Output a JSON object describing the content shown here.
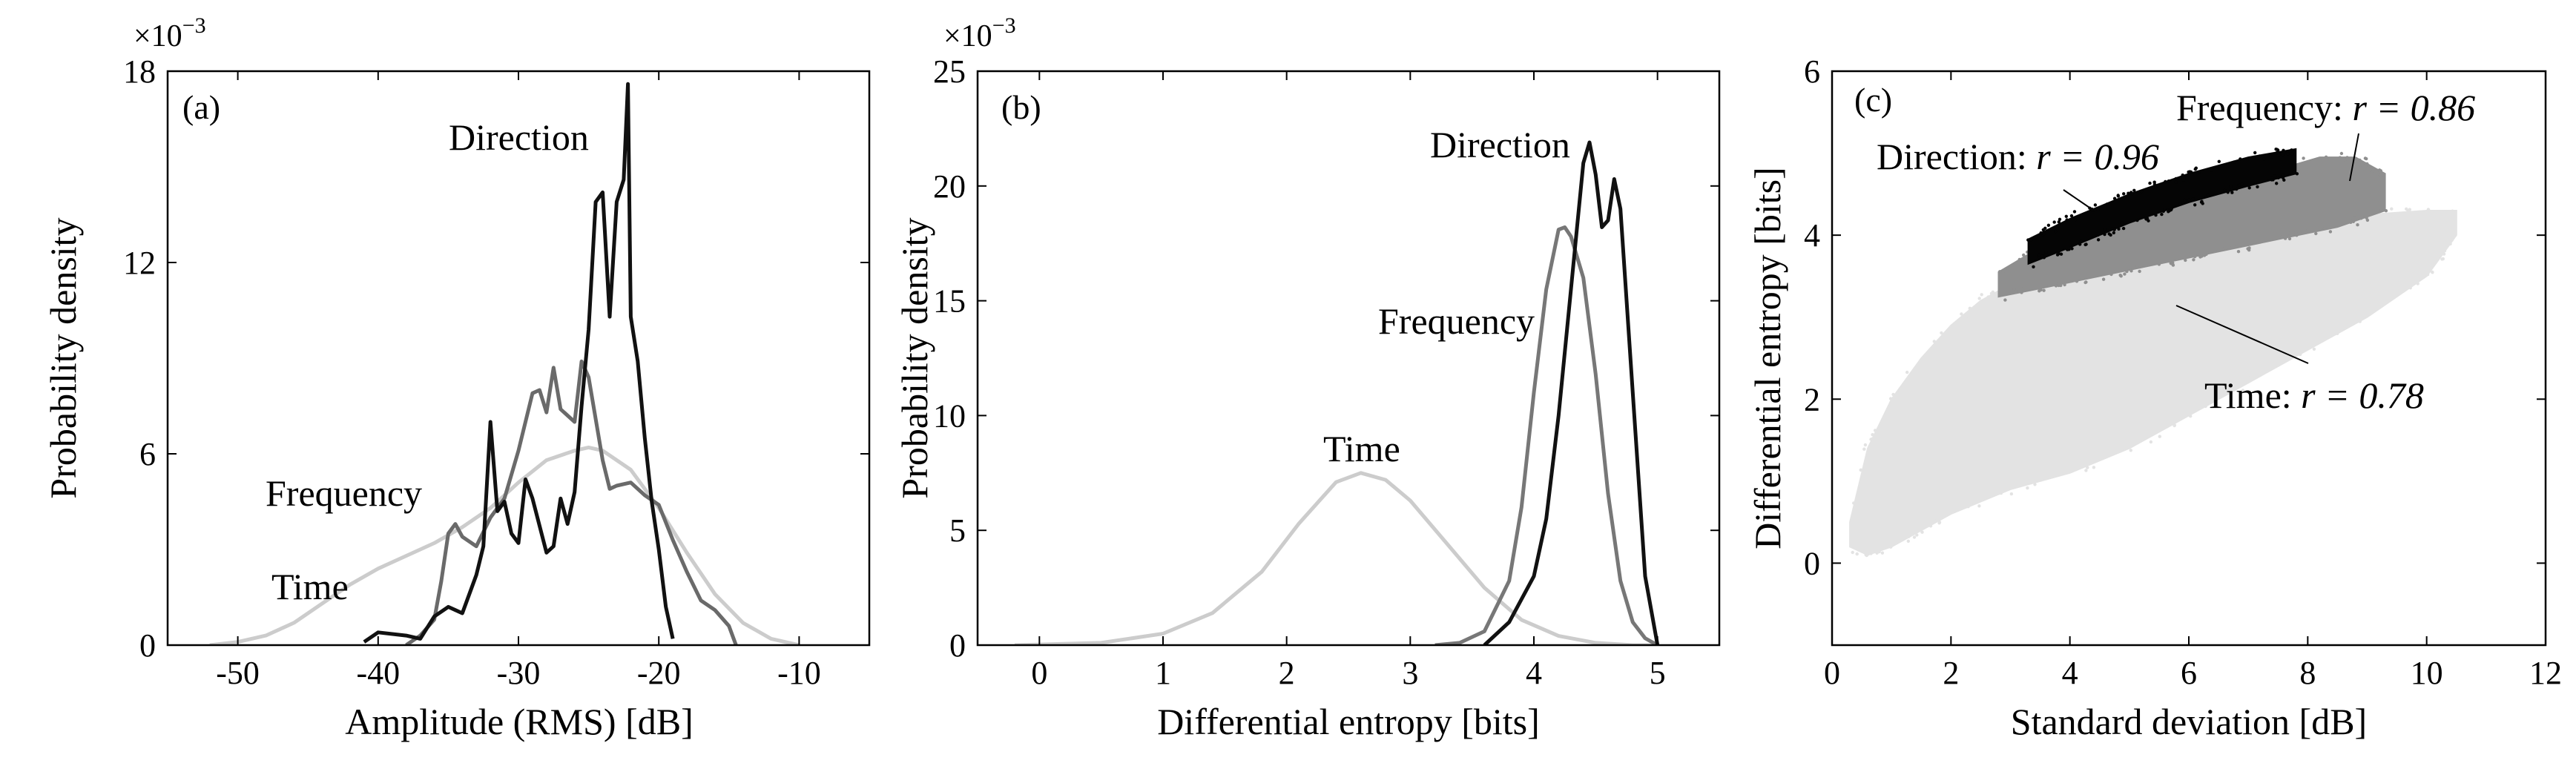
{
  "chart_data": [
    {
      "type": "line",
      "panel_label": "(a)",
      "xlabel": "Amplitude (RMS) [dB]",
      "ylabel": "Probability density",
      "xlim": [
        -55,
        -5
      ],
      "ylim": [
        0,
        0.018
      ],
      "xticks": [
        -50,
        -40,
        -30,
        -20,
        -10
      ],
      "yticks": [
        0,
        0.006,
        0.012,
        0.018
      ],
      "ytick_labels": [
        "0",
        "6",
        "12",
        "18"
      ],
      "y_multiplier": "×10",
      "y_multiplier_exp": "−3",
      "annotations": [
        "Direction",
        "Frequency",
        "Time"
      ],
      "series": [
        {
          "name": "Time",
          "color": "#cccccc",
          "x": [
            -52,
            -50,
            -48,
            -46,
            -44,
            -42,
            -40,
            -38,
            -36,
            -34,
            -32,
            -30,
            -28,
            -26,
            -25,
            -24,
            -22,
            -20,
            -18,
            -16,
            -14,
            -12,
            -10
          ],
          "y": [
            0.0,
            0.0001,
            0.0003,
            0.0007,
            0.0013,
            0.0019,
            0.0024,
            0.0028,
            0.0032,
            0.0037,
            0.0043,
            0.0051,
            0.0058,
            0.0061,
            0.0062,
            0.0061,
            0.0055,
            0.0043,
            0.0029,
            0.0016,
            0.0007,
            0.0002,
            0.0
          ]
        },
        {
          "name": "Frequency",
          "color": "#6a6a6a",
          "x": [
            -38,
            -37,
            -36,
            -35.5,
            -35,
            -34.5,
            -34,
            -33,
            -32,
            -31,
            -30,
            -29,
            -28.5,
            -28,
            -27.5,
            -27,
            -26,
            -25.5,
            -25,
            -24,
            -23.5,
            -23,
            -22,
            -21,
            -20,
            -19,
            -18,
            -17,
            -16,
            -15,
            -14.5
          ],
          "y": [
            0.0,
            0.0003,
            0.0008,
            0.002,
            0.0035,
            0.0038,
            0.0034,
            0.0031,
            0.004,
            0.0046,
            0.0061,
            0.0079,
            0.008,
            0.0073,
            0.0087,
            0.0074,
            0.007,
            0.0089,
            0.0084,
            0.0058,
            0.0049,
            0.005,
            0.0051,
            0.0047,
            0.0044,
            0.0033,
            0.0023,
            0.0014,
            0.0011,
            0.0006,
            0.0
          ]
        },
        {
          "name": "Direction",
          "color": "#111111",
          "x": [
            -41,
            -40,
            -38,
            -37,
            -36,
            -35,
            -34.5,
            -34,
            -33,
            -32.5,
            -32,
            -31.5,
            -31,
            -30.5,
            -30,
            -29.5,
            -29,
            -28,
            -27.5,
            -27,
            -26.5,
            -26,
            -25.5,
            -25,
            -24.5,
            -24,
            -23.5,
            -23,
            -22.5,
            -22.2,
            -22,
            -21.5,
            -21,
            -20.5,
            -20,
            -19.5,
            -19
          ],
          "y": [
            0.0001,
            0.0004,
            0.0003,
            0.0002,
            0.0009,
            0.0012,
            0.0011,
            0.001,
            0.0022,
            0.0031,
            0.007,
            0.0042,
            0.0045,
            0.0035,
            0.0032,
            0.0052,
            0.0046,
            0.0029,
            0.0031,
            0.0046,
            0.0038,
            0.0048,
            0.0075,
            0.0099,
            0.0139,
            0.0142,
            0.0103,
            0.0139,
            0.0146,
            0.0176,
            0.0103,
            0.0089,
            0.0065,
            0.0045,
            0.003,
            0.0012,
            0.0002
          ]
        }
      ]
    },
    {
      "type": "line",
      "panel_label": "(b)",
      "xlabel": "Differential entropy [bits]",
      "ylabel": "Probability density",
      "xlim": [
        -0.5,
        5.5
      ],
      "ylim": [
        0,
        0.025
      ],
      "xticks": [
        0,
        1,
        2,
        3,
        4,
        5
      ],
      "yticks": [
        0,
        0.005,
        0.01,
        0.015,
        0.02,
        0.025
      ],
      "ytick_labels": [
        "0",
        "5",
        "10",
        "15",
        "20",
        "25"
      ],
      "y_multiplier": "×10",
      "y_multiplier_exp": "−3",
      "annotations": [
        "Direction",
        "Frequency",
        "Time"
      ],
      "series": [
        {
          "name": "Time",
          "color": "#cccccc",
          "x": [
            -0.2,
            0.5,
            1.0,
            1.4,
            1.8,
            2.1,
            2.4,
            2.6,
            2.8,
            3.0,
            3.3,
            3.6,
            3.9,
            4.2,
            4.5,
            4.8,
            5.0
          ],
          "y": [
            0.0,
            0.0001,
            0.0005,
            0.0014,
            0.0032,
            0.0053,
            0.0071,
            0.0075,
            0.0072,
            0.0063,
            0.0044,
            0.0025,
            0.0011,
            0.0004,
            0.0001,
            0.0,
            0.0
          ]
        },
        {
          "name": "Frequency",
          "color": "#777777",
          "x": [
            3.2,
            3.4,
            3.6,
            3.8,
            3.9,
            4.0,
            4.1,
            4.2,
            4.25,
            4.3,
            4.4,
            4.5,
            4.6,
            4.7,
            4.8,
            4.9,
            5.0
          ],
          "y": [
            0.0,
            0.0001,
            0.0006,
            0.0028,
            0.006,
            0.011,
            0.0155,
            0.0181,
            0.0182,
            0.0178,
            0.016,
            0.0118,
            0.0066,
            0.0028,
            0.001,
            0.0003,
            0.0
          ]
        },
        {
          "name": "Direction",
          "color": "#111111",
          "x": [
            3.6,
            3.8,
            4.0,
            4.1,
            4.2,
            4.3,
            4.4,
            4.45,
            4.5,
            4.55,
            4.6,
            4.65,
            4.7,
            4.8,
            4.9,
            5.0
          ],
          "y": [
            0.0,
            0.001,
            0.003,
            0.0055,
            0.01,
            0.0155,
            0.021,
            0.0219,
            0.0205,
            0.0182,
            0.0185,
            0.0203,
            0.019,
            0.011,
            0.003,
            0.0
          ]
        }
      ]
    },
    {
      "type": "scatter",
      "panel_label": "(c)",
      "xlabel": "Standard deviation [dB]",
      "ylabel": "Differential entropy [bits]",
      "xlim": [
        0,
        12
      ],
      "ylim": [
        -1,
        6
      ],
      "xticks": [
        0,
        2,
        4,
        6,
        8,
        10,
        12
      ],
      "yticks": [
        0,
        2,
        4,
        6
      ],
      "annotations": [
        {
          "series": "Direction",
          "label": "Direction: ",
          "r_text": "r = 0.96"
        },
        {
          "series": "Frequency",
          "label": "Frequency: ",
          "r_text": "r = 0.86"
        },
        {
          "series": "Time",
          "label": "Time: ",
          "r_text": "r = 0.78"
        }
      ],
      "series": [
        {
          "name": "Time",
          "color": "#e3e3e3",
          "region_upper": {
            "x": [
              0.3,
              0.6,
              1.0,
              1.5,
              2.0,
              2.5,
              3.0,
              3.5,
              4.0,
              5.0,
              6.0,
              7.0,
              8.0,
              9.0,
              10.0,
              10.5
            ],
            "y": [
              0.5,
              1.4,
              2.0,
              2.5,
              2.9,
              3.2,
              3.4,
              3.55,
              3.7,
              3.85,
              3.95,
              4.05,
              4.15,
              4.25,
              4.3,
              4.3
            ]
          },
          "region_lower": {
            "x": [
              0.3,
              0.6,
              1.0,
              1.5,
              2.0,
              3.0,
              4.0,
              5.0,
              6.0,
              7.0,
              8.0,
              9.0,
              10.0,
              10.5
            ],
            "y": [
              0.2,
              0.1,
              0.2,
              0.4,
              0.6,
              0.9,
              1.1,
              1.4,
              1.8,
              2.2,
              2.6,
              3.0,
              3.5,
              4.0
            ]
          }
        },
        {
          "name": "Frequency",
          "color": "#8f8f8f",
          "region_upper": {
            "x": [
              2.8,
              3.5,
              4.5,
              5.5,
              6.5,
              7.5,
              8.2,
              8.8,
              9.3
            ],
            "y": [
              3.55,
              3.85,
              4.15,
              4.4,
              4.6,
              4.8,
              4.95,
              4.95,
              4.75
            ]
          },
          "region_lower": {
            "x": [
              2.8,
              3.5,
              4.5,
              5.5,
              6.5,
              7.5,
              8.5,
              9.3
            ],
            "y": [
              3.25,
              3.35,
              3.5,
              3.65,
              3.8,
              3.95,
              4.1,
              4.3
            ]
          }
        },
        {
          "name": "Direction",
          "color": "#050505",
          "region_upper": {
            "x": [
              3.3,
              4.0,
              5.0,
              6.0,
              7.0,
              7.8
            ],
            "y": [
              3.95,
              4.2,
              4.5,
              4.75,
              4.95,
              5.05
            ]
          },
          "region_lower": {
            "x": [
              3.3,
              4.0,
              5.0,
              6.0,
              7.0,
              7.8
            ],
            "y": [
              3.65,
              3.85,
              4.15,
              4.4,
              4.6,
              4.75
            ]
          }
        }
      ]
    }
  ]
}
